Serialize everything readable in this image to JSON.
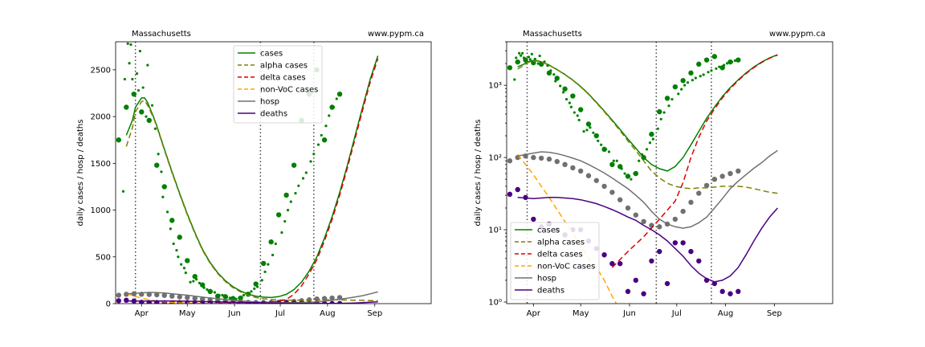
{
  "chart_data": [
    {
      "type": "line",
      "yscale": "linear",
      "title_left": "Massachusetts",
      "title_right": "www.pypm.ca",
      "ylabel": "daily cases / hosp / deaths",
      "ylim": [
        0,
        2800
      ],
      "xlim": [
        -17,
        190
      ],
      "yticks": [
        0,
        500,
        1000,
        1500,
        2000,
        2500
      ],
      "ytick_labels": [
        "0",
        "500",
        "1000",
        "1500",
        "2000",
        "2500"
      ],
      "legend_position": "top-center",
      "xticks": [
        {
          "label": "Apr",
          "day": 0
        },
        {
          "label": "May",
          "day": 30
        },
        {
          "label": "Jun",
          "day": 61
        },
        {
          "label": "Jul",
          "day": 91
        },
        {
          "label": "Aug",
          "day": 122
        },
        {
          "label": "Sep",
          "day": 153
        }
      ],
      "vlines": [
        -4,
        78,
        113
      ],
      "series": [
        {
          "name": "cases",
          "color": "#008000",
          "dash": "none",
          "x": [
            -10,
            -6,
            -4,
            0,
            2,
            4,
            6,
            8,
            10,
            15,
            20,
            25,
            30,
            35,
            40,
            45,
            50,
            55,
            60,
            65,
            70,
            75,
            80,
            85,
            90,
            95,
            100,
            105,
            110,
            115,
            120,
            125,
            130,
            135,
            140,
            145,
            150,
            155
          ],
          "y": [
            1800,
            1960,
            2100,
            2200,
            2200,
            2150,
            2070,
            1990,
            1900,
            1650,
            1410,
            1180,
            960,
            760,
            580,
            440,
            330,
            245,
            180,
            135,
            100,
            80,
            70,
            65,
            75,
            100,
            150,
            230,
            350,
            500,
            700,
            930,
            1190,
            1480,
            1790,
            2100,
            2400,
            2650
          ]
        },
        {
          "name": "alpha cases",
          "color": "#808000",
          "dash": "7 4",
          "x": [
            -10,
            -6,
            -4,
            0,
            2,
            4,
            6,
            8,
            10,
            15,
            20,
            25,
            30,
            35,
            40,
            45,
            50,
            55,
            60,
            65,
            70,
            75,
            80,
            85,
            90,
            95,
            100,
            105,
            110,
            115,
            120,
            125,
            130,
            135,
            140,
            145,
            150,
            155
          ],
          "y": [
            1680,
            1880,
            2050,
            2160,
            2170,
            2120,
            2050,
            1980,
            1890,
            1640,
            1400,
            1170,
            950,
            750,
            570,
            430,
            320,
            235,
            170,
            125,
            90,
            65,
            52,
            44,
            40,
            38,
            37,
            38,
            38,
            39,
            40,
            40,
            40,
            39,
            37,
            35,
            33,
            32
          ]
        },
        {
          "name": "delta cases",
          "color": "#dd0000",
          "dash": "7 4",
          "x": [
            50,
            60,
            70,
            80,
            90,
            95,
            100,
            105,
            110,
            115,
            120,
            125,
            130,
            135,
            140,
            145,
            150,
            155
          ],
          "y": [
            3,
            5,
            8,
            14,
            25,
            45,
            100,
            190,
            320,
            470,
            670,
            900,
            1160,
            1450,
            1760,
            2070,
            2370,
            2620
          ]
        },
        {
          "name": "non-VoC cases",
          "color": "#ffa500",
          "dash": "7 4",
          "x": [
            -10,
            -5,
            0,
            5,
            10,
            15,
            20,
            25,
            30,
            35,
            40,
            45,
            50,
            60,
            70
          ],
          "y": [
            110,
            80,
            58,
            40,
            28,
            19,
            13,
            9,
            6,
            4,
            3,
            2,
            1.2,
            0.5,
            0.2
          ]
        },
        {
          "name": "hosp",
          "color": "#707070",
          "dash": "none",
          "x": [
            -10,
            -5,
            0,
            5,
            10,
            15,
            20,
            25,
            30,
            35,
            40,
            45,
            50,
            55,
            60,
            65,
            70,
            75,
            80,
            85,
            90,
            95,
            100,
            105,
            110,
            115,
            120,
            125,
            130,
            135,
            140,
            145,
            150,
            155
          ],
          "y": [
            105,
            110,
            115,
            120,
            118,
            113,
            106,
            98,
            90,
            80,
            70,
            61,
            52,
            44,
            37,
            30,
            24,
            18,
            14,
            12,
            11,
            10.5,
            11,
            12.5,
            15,
            20,
            27,
            37,
            47,
            58,
            71,
            85,
            105,
            125
          ]
        },
        {
          "name": "deaths",
          "color": "#4b0082",
          "dash": "none",
          "x": [
            -10,
            -5,
            0,
            5,
            10,
            15,
            20,
            25,
            30,
            35,
            40,
            45,
            50,
            55,
            60,
            65,
            70,
            75,
            80,
            85,
            90,
            95,
            100,
            105,
            110,
            115,
            120,
            125,
            130,
            135,
            140,
            145,
            150,
            155
          ],
          "y": [
            28,
            27.5,
            27,
            27.5,
            28,
            28,
            27.5,
            27,
            26,
            24.5,
            23,
            21,
            19,
            17,
            15,
            13.5,
            11.5,
            10,
            8.5,
            7,
            5.5,
            4.3,
            3.2,
            2.5,
            2.1,
            1.9,
            2.0,
            2.3,
            3.0,
            4.5,
            7,
            10.5,
            15,
            20
          ]
        }
      ],
      "points": [
        {
          "series": "cases",
          "color": "#008000",
          "size": "large",
          "x": [
            -15,
            -10,
            -5,
            0,
            5,
            10,
            15,
            20,
            25,
            30,
            35,
            40,
            45,
            50,
            55,
            60,
            65,
            70,
            75,
            80,
            85,
            90,
            95,
            100,
            105,
            110,
            115,
            120,
            125,
            130
          ],
          "y": [
            1750,
            2100,
            2240,
            2050,
            1960,
            1480,
            1250,
            890,
            710,
            460,
            290,
            200,
            130,
            80,
            75,
            55,
            60,
            100,
            210,
            430,
            660,
            950,
            1160,
            1480,
            1960,
            2240,
            2500,
            1750,
            2100,
            2240
          ]
        },
        {
          "series": "cases",
          "color": "#008000",
          "size": "small",
          "x": [
            -12,
            -11,
            -9,
            -8,
            -7,
            -6,
            -3,
            -2,
            -1,
            1,
            3,
            4,
            7,
            9,
            11,
            13,
            14,
            17,
            19,
            21,
            23,
            24,
            26,
            28,
            29,
            32,
            34,
            36,
            38,
            41,
            43,
            46,
            48,
            51,
            53,
            56,
            58,
            62,
            64,
            67,
            69,
            72,
            74,
            76,
            79,
            81,
            83,
            86,
            88,
            92,
            94,
            96,
            98,
            101,
            103,
            106,
            108,
            111,
            113,
            116,
            118,
            121,
            123,
            126,
            128
          ],
          "y": [
            1200,
            2400,
            2780,
            2570,
            2770,
            2400,
            2460,
            2280,
            2700,
            2310,
            2000,
            2550,
            2120,
            1870,
            1600,
            1410,
            1140,
            980,
            800,
            640,
            570,
            500,
            420,
            380,
            330,
            230,
            240,
            260,
            220,
            170,
            150,
            130,
            120,
            90,
            90,
            70,
            60,
            50,
            60,
            90,
            110,
            130,
            160,
            180,
            250,
            340,
            420,
            520,
            640,
            760,
            880,
            1000,
            1090,
            1180,
            1260,
            1340,
            1400,
            1520,
            1600,
            1700,
            1800,
            1900,
            2010,
            2100,
            2190
          ]
        },
        {
          "series": "hosp",
          "color": "#707070",
          "size": "large",
          "x": [
            -15,
            -10,
            -5,
            0,
            5,
            10,
            15,
            20,
            25,
            30,
            35,
            40,
            45,
            50,
            55,
            60,
            65,
            70,
            75,
            80,
            85,
            90,
            95,
            100,
            105,
            110,
            115,
            120,
            125,
            130
          ],
          "y": [
            90,
            100,
            105,
            100,
            98,
            95,
            88,
            80,
            72,
            65,
            56,
            48,
            40,
            33,
            26,
            20,
            16,
            13,
            11.5,
            11,
            12,
            14,
            18,
            24,
            32,
            41,
            50,
            55,
            60,
            65
          ]
        },
        {
          "series": "deaths",
          "color": "#4b0082",
          "size": "large",
          "x": [
            -15,
            -10,
            -5,
            0,
            5,
            10,
            15,
            20,
            25,
            30,
            35,
            40,
            45,
            50,
            55,
            60,
            65,
            70,
            75,
            80,
            85,
            90,
            95,
            100,
            105,
            110,
            115,
            120,
            125,
            130
          ],
          "y": [
            31,
            36,
            28,
            14,
            11,
            12,
            10,
            8.5,
            10,
            10,
            7,
            5.5,
            4.5,
            3.4,
            3.4,
            1.4,
            2.0,
            1.3,
            3.7,
            5.0,
            1.8,
            6.6,
            6.6,
            5.0,
            3.7,
            2.0,
            1.8,
            1.4,
            1.3,
            1.4
          ]
        }
      ]
    },
    {
      "type": "line",
      "yscale": "log",
      "title_left": "Massachusetts",
      "title_right": "www.pypm.ca",
      "ylabel": "daily cases / hosp / deaths",
      "ylim": [
        0.95,
        4000
      ],
      "xlim": [
        -17,
        190
      ],
      "yticks": [
        1,
        10,
        100,
        1000
      ],
      "ytick_labels": [
        "10⁰",
        "10¹",
        "10²",
        "10³"
      ],
      "legend_position": "lower-left",
      "xticks": [
        {
          "label": "Apr",
          "day": 0
        },
        {
          "label": "May",
          "day": 30
        },
        {
          "label": "Jun",
          "day": 61
        },
        {
          "label": "Jul",
          "day": 91
        },
        {
          "label": "Aug",
          "day": 122
        },
        {
          "label": "Sep",
          "day": 153
        }
      ],
      "vlines": [
        -4,
        78,
        113
      ],
      "series_ref": 0
    }
  ],
  "legend": [
    {
      "label": "cases",
      "color": "#008000",
      "dash": "none"
    },
    {
      "label": "alpha cases",
      "color": "#808000",
      "dash": "7 4"
    },
    {
      "label": "delta cases",
      "color": "#dd0000",
      "dash": "7 4"
    },
    {
      "label": "non-VoC cases",
      "color": "#ffa500",
      "dash": "7 4"
    },
    {
      "label": "hosp",
      "color": "#707070",
      "dash": "none"
    },
    {
      "label": "deaths",
      "color": "#4b0082",
      "dash": "none"
    }
  ]
}
